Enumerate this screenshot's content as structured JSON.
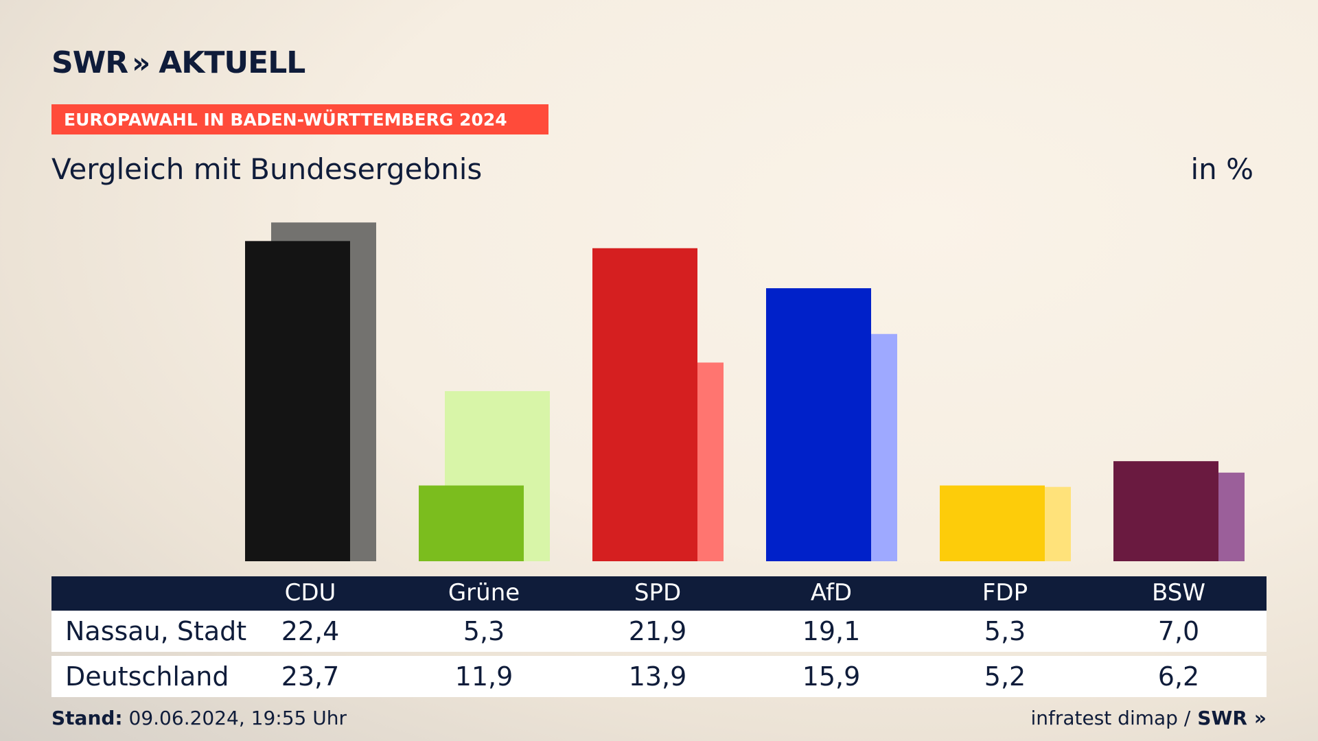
{
  "brand": {
    "logo_text": "SWR",
    "logo_suffix": "AKTUELL"
  },
  "banner": "EUROPAWAHL IN BADEN-WÜRTTEMBERG 2024",
  "subtitle": "Vergleich mit Bundesergebnis",
  "unit": "in %",
  "footer": {
    "stand_label": "Stand:",
    "stand_value": "09.06.2024, 19:55 Uhr",
    "source": "infratest dimap /",
    "source_logo": "SWR"
  },
  "chart_data": {
    "type": "bar",
    "categories": [
      "CDU",
      "Grüne",
      "SPD",
      "AfD",
      "FDP",
      "BSW"
    ],
    "series": [
      {
        "name": "Nassau, Stadt",
        "values": [
          22.4,
          5.3,
          21.9,
          19.1,
          5.3,
          7.0
        ],
        "labels": [
          "22,4",
          "5,3",
          "21,9",
          "19,1",
          "5,3",
          "7,0"
        ]
      },
      {
        "name": "Deutschland",
        "values": [
          23.7,
          11.9,
          13.9,
          15.9,
          5.2,
          6.2
        ],
        "labels": [
          "23,7",
          "11,9",
          "13,9",
          "15,9",
          "5,2",
          "6,2"
        ]
      }
    ],
    "colors_primary": [
      "#141414",
      "#7bbd1e",
      "#d51f20",
      "#0021c9",
      "#fdcc0a",
      "#6a1a40"
    ],
    "colors_secondary": [
      "#73726f",
      "#d8f5a8",
      "#ff7570",
      "#9ea9ff",
      "#ffe27a",
      "#9b5f9a"
    ],
    "ylim": [
      0,
      24
    ]
  }
}
